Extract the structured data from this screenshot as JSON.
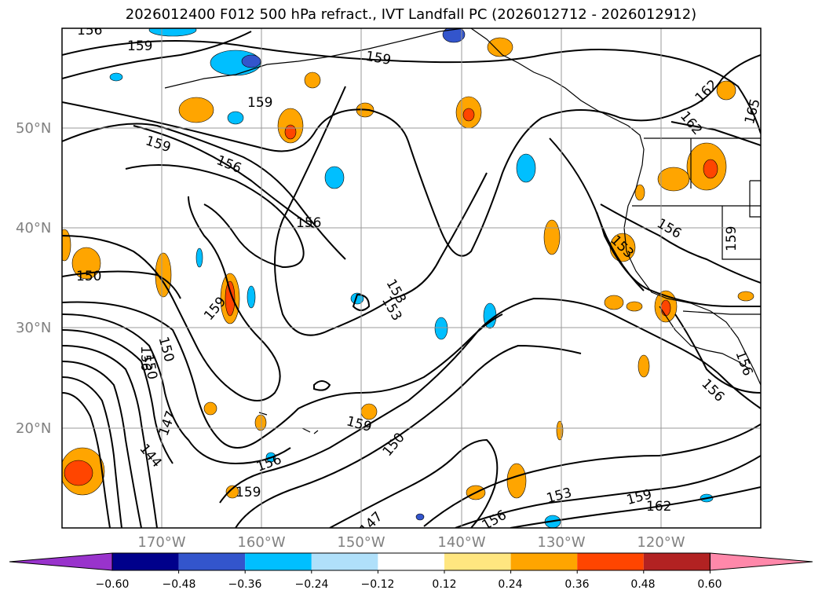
{
  "title": "2026012400 F012 500 hPa refract., IVT Landfall PC (2026012712 - 2026012912)",
  "axes": {
    "lat_labels": [
      "50°N",
      "40°N",
      "30°N",
      "20°N"
    ],
    "lon_labels": [
      "170°W",
      "160°W",
      "150°W",
      "140°W",
      "130°W",
      "120°W"
    ]
  },
  "contour_labels": [
    "156",
    "159",
    "159",
    "159",
    "156",
    "156",
    "153",
    "150",
    "159",
    "150",
    "156",
    "147",
    "144",
    "159",
    "150",
    "156",
    "159",
    "153",
    "153",
    "156",
    "159",
    "162",
    "162",
    "159",
    "162",
    "165",
    "156",
    "159",
    "156",
    "150",
    "147",
    "153",
    "156"
  ],
  "colorbar": {
    "ticks": [
      "−0.60",
      "−0.48",
      "−0.36",
      "−0.24",
      "−0.12",
      "0.12",
      "0.24",
      "0.36",
      "0.48",
      "0.60"
    ],
    "colors": [
      "#9933cc",
      "#00008b",
      "#3355cc",
      "#00bfff",
      "#b0e0fa",
      "#ffffff",
      "#ffe680",
      "#ffa500",
      "#ff4500",
      "#b22222",
      "#ff88aa"
    ]
  }
}
